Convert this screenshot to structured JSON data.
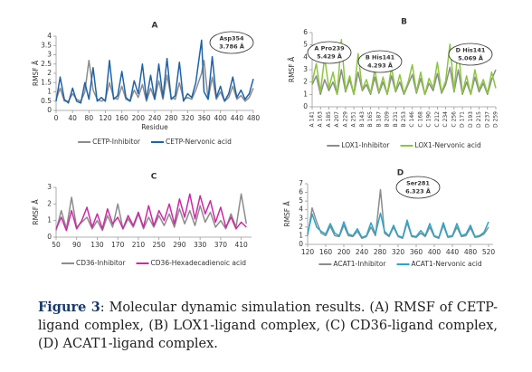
{
  "chart_data": [
    {
      "type": "line",
      "title": "A",
      "xlabel": "Residue",
      "ylabel": "RMSF Å",
      "x": [
        0,
        10,
        20,
        30,
        40,
        50,
        60,
        70,
        80,
        90,
        100,
        110,
        120,
        130,
        140,
        150,
        160,
        170,
        180,
        190,
        200,
        210,
        220,
        230,
        240,
        250,
        260,
        270,
        280,
        290,
        300,
        310,
        320,
        330,
        340,
        354,
        360,
        370,
        380,
        390,
        400,
        410,
        420,
        430,
        440,
        450,
        460,
        470,
        480
      ],
      "series": [
        {
          "name": "CETP-Inhibitor",
          "color": "#8c8c8c",
          "values": [
            0.6,
            1.2,
            0.5,
            0.5,
            0.9,
            0.6,
            0.5,
            1.0,
            2.7,
            1.1,
            0.6,
            0.5,
            0.6,
            1.5,
            0.7,
            0.6,
            1.3,
            0.6,
            0.5,
            1.1,
            0.7,
            1.4,
            0.5,
            1.2,
            0.6,
            1.6,
            0.6,
            1.9,
            0.7,
            0.6,
            1.5,
            0.6,
            0.7,
            0.6,
            1.1,
            2.0,
            2.7,
            0.6,
            1.8,
            0.6,
            1.0,
            0.5,
            0.7,
            1.3,
            0.6,
            0.8,
            0.5,
            0.7,
            1.2
          ]
        },
        {
          "name": "CETP-Nervonic acid",
          "color": "#1f63a8",
          "values": [
            0.5,
            1.8,
            0.6,
            0.4,
            1.2,
            0.5,
            0.4,
            1.5,
            0.6,
            2.3,
            0.5,
            0.7,
            0.5,
            2.7,
            0.6,
            0.8,
            2.1,
            0.7,
            0.5,
            1.6,
            0.9,
            2.5,
            0.6,
            1.9,
            0.6,
            2.5,
            0.7,
            2.8,
            0.6,
            0.8,
            2.6,
            0.5,
            0.9,
            0.7,
            1.5,
            3.786,
            1.0,
            0.6,
            2.9,
            0.7,
            1.3,
            0.5,
            0.9,
            1.8,
            0.7,
            1.1,
            0.6,
            0.9,
            1.7
          ]
        }
      ],
      "xlim": [
        0,
        480
      ],
      "xticks": [
        0,
        40,
        80,
        120,
        160,
        200,
        240,
        280,
        320,
        360,
        400,
        440,
        480
      ],
      "ylim": [
        0,
        4
      ],
      "yticks": [
        0,
        0.5,
        1,
        1.5,
        2,
        2.5,
        3,
        3.5,
        4
      ],
      "annotations": [
        {
          "label": "Asp354",
          "text": "3.786 Å"
        }
      ]
    },
    {
      "type": "line",
      "title": "B",
      "xlabel": null,
      "ylabel": "RMSF Å",
      "x": [
        0,
        5,
        10,
        15,
        20,
        25,
        30,
        35,
        40,
        45,
        50,
        55,
        60,
        65,
        70,
        75,
        80,
        85,
        90,
        95,
        100,
        105,
        110,
        115,
        120,
        125,
        130,
        135,
        140,
        145,
        150,
        155,
        160,
        165,
        170,
        175,
        180,
        185,
        190,
        195,
        200,
        205,
        210,
        215,
        220
      ],
      "series": [
        {
          "name": "LOX1-Inhibitor",
          "color": "#8c8c8c",
          "values": [
            1.8,
            2.5,
            1.0,
            2.2,
            1.3,
            2.0,
            1.0,
            3.0,
            1.2,
            2.2,
            1.0,
            2.8,
            1.3,
            1.8,
            1.0,
            2.4,
            1.1,
            2.0,
            1.0,
            2.5,
            1.2,
            2.0,
            1.0,
            1.8,
            2.6,
            1.1,
            2.3,
            1.0,
            1.9,
            1.3,
            2.7,
            1.1,
            1.8,
            3.2,
            1.2,
            3.0,
            1.0,
            2.0,
            1.0,
            2.4,
            1.2,
            1.9,
            1.0,
            2.2,
            3.0
          ]
        },
        {
          "name": "LOX1-Nervonic acid",
          "color": "#8cc63f",
          "values": [
            2.0,
            3.5,
            1.2,
            4.0,
            1.5,
            2.8,
            1.0,
            5.429,
            1.3,
            2.5,
            1.0,
            4.293,
            1.4,
            2.2,
            1.1,
            3.0,
            1.2,
            2.4,
            1.0,
            3.2,
            1.3,
            2.6,
            1.1,
            2.0,
            3.4,
            1.2,
            2.8,
            1.0,
            2.3,
            1.5,
            3.6,
            1.2,
            2.1,
            5.069,
            1.3,
            4.8,
            1.1,
            2.5,
            1.0,
            3.0,
            1.4,
            2.2,
            1.1,
            2.8,
            1.5
          ]
        }
      ],
      "xlim": [
        0,
        220
      ],
      "xticks": [
        {
          "value": 0,
          "label": "A 141"
        },
        {
          "value": 10,
          "label": "A 163"
        },
        {
          "value": 20,
          "label": "A 185"
        },
        {
          "value": 30,
          "label": "A 207"
        },
        {
          "value": 40,
          "label": "A 229"
        },
        {
          "value": 50,
          "label": "A 251"
        },
        {
          "value": 60,
          "label": "B 143"
        },
        {
          "value": 70,
          "label": "B 165"
        },
        {
          "value": 80,
          "label": "B 187"
        },
        {
          "value": 90,
          "label": "B 209"
        },
        {
          "value": 100,
          "label": "B 231"
        },
        {
          "value": 110,
          "label": "B 253"
        },
        {
          "value": 120,
          "label": "C 146"
        },
        {
          "value": 130,
          "label": "C 168"
        },
        {
          "value": 140,
          "label": "C 190"
        },
        {
          "value": 150,
          "label": "C 212"
        },
        {
          "value": 160,
          "label": "C 234"
        },
        {
          "value": 170,
          "label": "C 256"
        },
        {
          "value": 180,
          "label": "D 171"
        },
        {
          "value": 190,
          "label": "D 193"
        },
        {
          "value": 200,
          "label": "D 215"
        },
        {
          "value": 210,
          "label": "D 237"
        },
        {
          "value": 220,
          "label": "D 259"
        }
      ],
      "ylim": [
        0,
        6
      ],
      "yticks": [
        0,
        1,
        2,
        3,
        4,
        5,
        6
      ],
      "annotations": [
        {
          "label": "A Pro239",
          "text": "5.429 Å"
        },
        {
          "label": "B His141",
          "text": "4.293 Å"
        },
        {
          "label": "D His141",
          "text": "5.069 Å"
        }
      ]
    },
    {
      "type": "line",
      "title": "C",
      "xlabel": null,
      "ylabel": "RMSF Å",
      "x": [
        50,
        60,
        70,
        80,
        90,
        100,
        110,
        120,
        130,
        140,
        150,
        160,
        170,
        180,
        190,
        200,
        210,
        220,
        230,
        240,
        250,
        260,
        270,
        280,
        290,
        300,
        310,
        320,
        330,
        340,
        350,
        360,
        370,
        380,
        390,
        400,
        410,
        420
      ],
      "series": [
        {
          "name": "CD36-Inhibitor",
          "color": "#8c8c8c",
          "values": [
            0.4,
            1.6,
            0.5,
            2.4,
            0.6,
            0.9,
            1.2,
            0.5,
            1.0,
            0.4,
            1.3,
            0.6,
            2.0,
            0.5,
            1.1,
            0.6,
            1.4,
            0.5,
            1.2,
            0.6,
            1.3,
            0.7,
            1.4,
            0.6,
            1.7,
            0.8,
            1.6,
            0.7,
            1.9,
            0.9,
            1.5,
            0.6,
            1.0,
            0.5,
            1.4,
            0.6,
            2.6,
            0.8
          ]
        },
        {
          "name": "CD36-Hexadecadienoic acid",
          "color": "#cc2aa6",
          "values": [
            0.5,
            1.2,
            0.4,
            1.6,
            0.5,
            1.0,
            1.8,
            0.6,
            1.4,
            0.5,
            1.7,
            0.8,
            1.2,
            0.5,
            1.3,
            0.7,
            1.5,
            0.6,
            1.9,
            0.7,
            1.6,
            1.0,
            2.0,
            0.8,
            2.3,
            1.2,
            2.6,
            1.1,
            2.5,
            1.4,
            2.2,
            0.9,
            1.8,
            0.6,
            1.2,
            0.5,
            0.9,
            0.6
          ]
        }
      ],
      "xlim": [
        50,
        430
      ],
      "xticks": [
        50,
        90,
        130,
        170,
        210,
        250,
        290,
        330,
        370,
        410
      ],
      "ylim": [
        0,
        3
      ],
      "yticks": [
        0,
        1,
        2,
        3
      ],
      "annotations": []
    },
    {
      "type": "line",
      "title": "D",
      "xlabel": null,
      "ylabel": "RMSF Å",
      "x": [
        120,
        130,
        140,
        150,
        160,
        170,
        180,
        190,
        200,
        210,
        220,
        230,
        240,
        250,
        260,
        270,
        281,
        290,
        300,
        310,
        320,
        330,
        340,
        350,
        360,
        370,
        380,
        390,
        400,
        410,
        420,
        430,
        440,
        450,
        460,
        470,
        480,
        490,
        500,
        510,
        520
      ],
      "series": [
        {
          "name": "ACAT1-Inhibitor",
          "color": "#8c8c8c",
          "values": [
            1.0,
            4.2,
            2.6,
            1.3,
            1.0,
            2.1,
            1.0,
            0.9,
            2.2,
            1.0,
            0.9,
            1.5,
            0.7,
            0.9,
            2.0,
            1.0,
            6.323,
            1.3,
            0.9,
            2.0,
            0.9,
            0.7,
            2.5,
            0.9,
            0.8,
            1.3,
            0.9,
            2.0,
            0.9,
            0.7,
            2.2,
            0.8,
            0.9,
            2.0,
            0.9,
            1.0,
            1.9,
            0.8,
            0.9,
            1.2,
            2.0
          ]
        },
        {
          "name": "ACAT1-Nervonic acid",
          "color": "#2aa6cc",
          "values": [
            1.2,
            3.5,
            2.0,
            1.5,
            1.2,
            2.4,
            1.3,
            1.0,
            2.6,
            1.2,
            1.0,
            1.8,
            0.8,
            1.0,
            2.5,
            1.2,
            3.6,
            1.5,
            1.0,
            2.2,
            1.0,
            0.8,
            2.8,
            1.0,
            0.9,
            1.6,
            1.0,
            2.4,
            1.0,
            0.8,
            2.5,
            0.9,
            1.0,
            2.4,
            1.0,
            1.2,
            2.2,
            0.9,
            1.0,
            1.4,
            2.6
          ]
        }
      ],
      "xlim": [
        120,
        530
      ],
      "xticks": [
        120,
        160,
        200,
        240,
        280,
        320,
        360,
        400,
        440,
        480,
        520
      ],
      "ylim": [
        0,
        7
      ],
      "yticks": [
        0,
        1,
        2,
        3,
        4,
        5,
        6,
        7
      ],
      "annotations": [
        {
          "label": "Ser281",
          "text": "6.323 Å"
        }
      ]
    }
  ],
  "caption": {
    "label": "Figure 3",
    "text": ":  Molecular dynamic simulation results. (A) RMSF of CETP-ligand complex, (B) LOX1-ligand complex, (C) CD36-ligand complex, (D) ACAT1-ligand complex."
  }
}
